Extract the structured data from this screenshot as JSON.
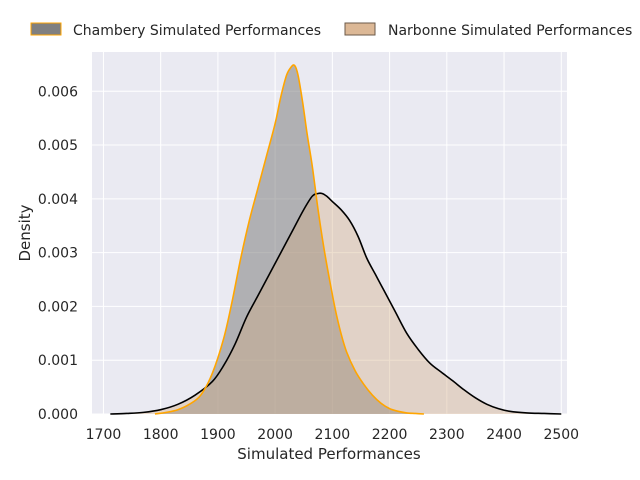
{
  "chart_data": {
    "type": "area",
    "xlabel": "Simulated Performances",
    "ylabel": "Density",
    "xlim": [
      1680,
      2510
    ],
    "ylim": [
      0,
      0.00673
    ],
    "xticks": [
      1700,
      1800,
      1900,
      2000,
      2100,
      2200,
      2300,
      2400,
      2500
    ],
    "yticks": [
      0.0,
      0.001,
      0.002,
      0.003,
      0.004,
      0.005,
      0.006
    ],
    "ytick_labels": [
      "0.000",
      "0.001",
      "0.002",
      "0.003",
      "0.004",
      "0.005",
      "0.006"
    ],
    "grid": true,
    "legend_position": "top",
    "series": [
      {
        "name": "Chambery Simulated Performances",
        "fill": "#808080",
        "fill_opacity": 0.55,
        "edge": "#ffa500",
        "x": [
          1790,
          1810,
          1830,
          1850,
          1870,
          1890,
          1910,
          1925,
          1940,
          1955,
          1970,
          1985,
          2000,
          2010,
          2020,
          2028,
          2034,
          2040,
          2048,
          2056,
          2065,
          2075,
          2085,
          2095,
          2105,
          2115,
          2125,
          2140,
          2155,
          2170,
          2185,
          2200,
          2215,
          2230,
          2245,
          2260
        ],
        "y": [
          0.0,
          3e-05,
          8e-05,
          0.00018,
          0.00035,
          0.00075,
          0.0014,
          0.0021,
          0.0029,
          0.0036,
          0.0042,
          0.0048,
          0.0054,
          0.0059,
          0.0063,
          0.00645,
          0.00648,
          0.0063,
          0.0058,
          0.0052,
          0.0046,
          0.0038,
          0.0031,
          0.0025,
          0.00195,
          0.0015,
          0.00115,
          0.0008,
          0.00055,
          0.00035,
          0.0002,
          0.0001,
          5e-05,
          2e-05,
          1e-05,
          0.0
        ]
      },
      {
        "name": "Narbonne Simulated Performances",
        "fill": "#d2aa82",
        "fill_opacity": 0.38,
        "edge": "#000000",
        "x": [
          1712,
          1740,
          1770,
          1800,
          1830,
          1860,
          1890,
          1910,
          1930,
          1950,
          1970,
          1990,
          2010,
          2030,
          2050,
          2065,
          2075,
          2082,
          2090,
          2100,
          2115,
          2130,
          2145,
          2160,
          2175,
          2190,
          2210,
          2230,
          2250,
          2270,
          2290,
          2310,
          2330,
          2350,
          2370,
          2390,
          2410,
          2440,
          2470,
          2500
        ],
        "y": [
          0.0,
          1e-05,
          3e-05,
          8e-05,
          0.00018,
          0.00035,
          0.0006,
          0.0009,
          0.0013,
          0.0018,
          0.0022,
          0.0026,
          0.003,
          0.0034,
          0.0038,
          0.00405,
          0.0041,
          0.0041,
          0.00405,
          0.00395,
          0.0038,
          0.0036,
          0.0033,
          0.0029,
          0.0026,
          0.0023,
          0.0019,
          0.0015,
          0.0012,
          0.00095,
          0.00078,
          0.00062,
          0.00045,
          0.0003,
          0.00018,
          0.0001,
          5e-05,
          2e-05,
          1e-05,
          0.0
        ]
      }
    ]
  }
}
